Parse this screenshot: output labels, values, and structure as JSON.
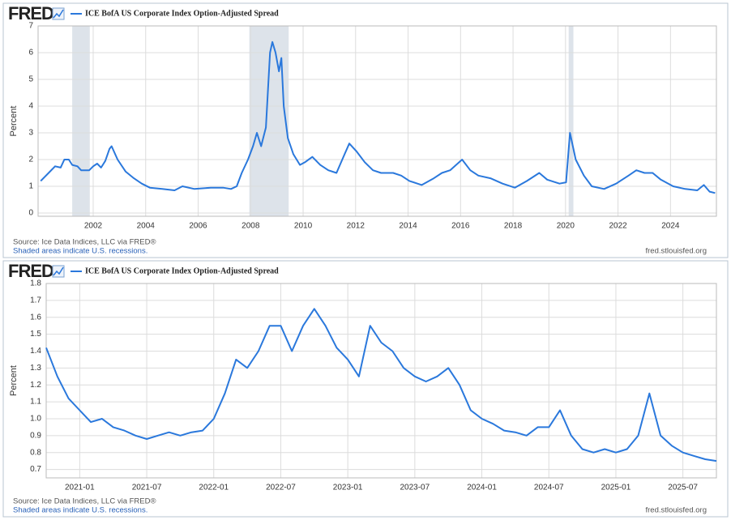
{
  "chart_data": [
    {
      "type": "line",
      "logo": "FRED",
      "title": "ICE BofA US Corporate Index Option-Adjusted Spread",
      "ylabel": "Percent",
      "source": "Source: Ice Data Indices, LLC via FRED®",
      "note": "Shaded areas indicate U.S. recessions.",
      "site": "fred.stlouisfed.org",
      "color": "#2a78dc",
      "grid": true,
      "xlim": [
        1999.9,
        2025.75
      ],
      "xticks": [
        2002,
        2004,
        2006,
        2008,
        2010,
        2012,
        2014,
        2016,
        2018,
        2020,
        2022,
        2024
      ],
      "ylim": [
        -0.12,
        7
      ],
      "yticks": [
        0,
        1,
        2,
        3,
        4,
        5,
        6,
        7
      ],
      "recessions": [
        [
          2001.2,
          2001.87
        ],
        [
          2007.95,
          2009.45
        ],
        [
          2020.12,
          2020.3
        ]
      ],
      "x": [
        2000.0,
        2000.3,
        2000.55,
        2000.76,
        2000.9,
        2001.07,
        2001.2,
        2001.4,
        2001.54,
        2001.85,
        2002.0,
        2002.15,
        2002.3,
        2002.46,
        2002.62,
        2002.7,
        2002.93,
        2003.24,
        2003.55,
        2003.85,
        2004.16,
        2004.63,
        2005.1,
        2005.4,
        2005.86,
        2006.48,
        2006.95,
        2007.25,
        2007.47,
        2007.66,
        2007.9,
        2008.09,
        2008.24,
        2008.4,
        2008.58,
        2008.74,
        2008.83,
        2008.95,
        2009.08,
        2009.17,
        2009.26,
        2009.42,
        2009.63,
        2009.88,
        2010.07,
        2010.35,
        2010.65,
        2010.96,
        2011.27,
        2011.58,
        2011.76,
        2012.04,
        2012.35,
        2012.66,
        2012.97,
        2013.43,
        2013.74,
        2014.05,
        2014.52,
        2014.98,
        2015.29,
        2015.6,
        2016.06,
        2016.37,
        2016.68,
        2017.14,
        2017.6,
        2018.07,
        2018.53,
        2019.0,
        2019.3,
        2019.77,
        2020.02,
        2020.17,
        2020.39,
        2020.7,
        2021.0,
        2021.47,
        2021.93,
        2022.4,
        2022.7,
        2023.01,
        2023.32,
        2023.63,
        2024.1,
        2024.56,
        2025.02,
        2025.27,
        2025.49,
        2025.7
      ],
      "values": [
        1.2,
        1.5,
        1.75,
        1.7,
        2.0,
        2.0,
        1.8,
        1.75,
        1.6,
        1.6,
        1.75,
        1.85,
        1.7,
        1.95,
        2.4,
        2.5,
        2.0,
        1.55,
        1.3,
        1.1,
        0.95,
        0.9,
        0.85,
        1.0,
        0.9,
        0.95,
        0.95,
        0.9,
        1.0,
        1.5,
        2.0,
        2.5,
        3.0,
        2.5,
        3.2,
        6.0,
        6.4,
        6.0,
        5.3,
        5.8,
        4.0,
        2.8,
        2.2,
        1.8,
        1.9,
        2.1,
        1.8,
        1.6,
        1.5,
        2.2,
        2.6,
        2.3,
        1.9,
        1.6,
        1.5,
        1.5,
        1.4,
        1.2,
        1.05,
        1.3,
        1.5,
        1.6,
        2.0,
        1.6,
        1.4,
        1.3,
        1.1,
        0.95,
        1.2,
        1.5,
        1.25,
        1.1,
        1.15,
        3.0,
        2.0,
        1.4,
        1.0,
        0.9,
        1.1,
        1.4,
        1.6,
        1.5,
        1.5,
        1.25,
        1.0,
        0.9,
        0.85,
        1.05,
        0.8,
        0.75
      ]
    },
    {
      "type": "line",
      "logo": "FRED",
      "title": "ICE BofA US Corporate Index Option-Adjusted Spread",
      "ylabel": "Percent",
      "source": "Source: Ice Data Indices, LLC via FRED®",
      "note": "Shaded areas indicate U.S. recessions.",
      "site": "fred.stlouisfed.org",
      "color": "#2a78dc",
      "grid": true,
      "xlim": [
        "2020-10",
        "2025-10"
      ],
      "xticks": [
        "2021-01",
        "2021-07",
        "2022-01",
        "2022-07",
        "2023-01",
        "2023-07",
        "2024-01",
        "2024-07",
        "2025-01",
        "2025-07"
      ],
      "ylim": [
        0.65,
        1.8
      ],
      "yticks": [
        0.7,
        0.8,
        0.9,
        {
          "value": 1,
          "label": "1.0"
        },
        1.1,
        1.2,
        1.3,
        1.4,
        1.5,
        1.6,
        1.7,
        1.8
      ],
      "x": [
        "2020-10",
        "2020-11",
        "2020-12",
        "2021-01",
        "2021-02",
        "2021-03",
        "2021-04",
        "2021-05",
        "2021-06",
        "2021-07",
        "2021-08",
        "2021-09",
        "2021-10",
        "2021-11",
        "2021-12",
        "2022-01",
        "2022-02",
        "2022-03",
        "2022-04",
        "2022-05",
        "2022-06",
        "2022-07",
        "2022-08",
        "2022-09",
        "2022-10",
        "2022-11",
        "2022-12",
        "2023-01",
        "2023-02",
        "2023-03",
        "2023-04",
        "2023-05",
        "2023-06",
        "2023-07",
        "2023-08",
        "2023-09",
        "2023-10",
        "2023-11",
        "2023-12",
        "2024-01",
        "2024-02",
        "2024-03",
        "2024-04",
        "2024-05",
        "2024-06",
        "2024-07",
        "2024-08",
        "2024-09",
        "2024-10",
        "2024-11",
        "2024-12",
        "2025-01",
        "2025-02",
        "2025-03",
        "2025-04",
        "2025-05",
        "2025-06",
        "2025-07",
        "2025-08",
        "2025-09",
        "2025-10"
      ],
      "values": [
        1.42,
        1.25,
        1.12,
        1.05,
        0.98,
        1.0,
        0.95,
        0.93,
        0.9,
        0.88,
        0.9,
        0.92,
        0.9,
        0.92,
        0.93,
        1.0,
        1.15,
        1.35,
        1.3,
        1.4,
        1.55,
        1.55,
        1.4,
        1.55,
        1.65,
        1.55,
        1.42,
        1.35,
        1.25,
        1.55,
        1.45,
        1.4,
        1.3,
        1.25,
        1.22,
        1.25,
        1.3,
        1.2,
        1.05,
        1.0,
        0.97,
        0.93,
        0.92,
        0.9,
        0.95,
        0.95,
        1.05,
        0.9,
        0.82,
        0.8,
        0.82,
        0.8,
        0.82,
        0.9,
        1.15,
        0.9,
        0.84,
        0.8,
        0.78,
        0.76,
        0.75
      ]
    }
  ]
}
